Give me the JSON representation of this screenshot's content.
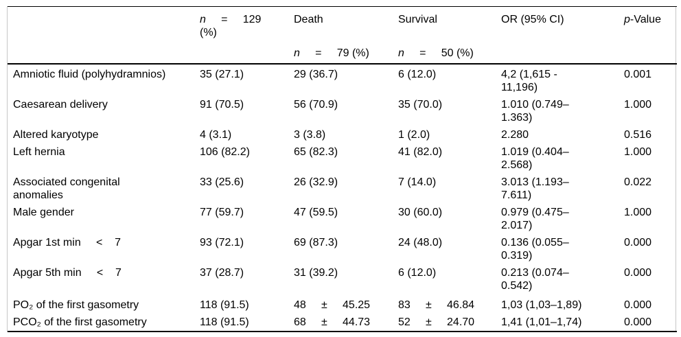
{
  "header": {
    "variable": "",
    "total": {
      "n": "n",
      "rest": "     =     129",
      "pct": "(%)"
    },
    "death": {
      "title": "Death",
      "n": "n",
      "rest": "     =     79 (%)"
    },
    "survival": {
      "title": "Survival",
      "n": "n",
      "rest": "     =     50 (%)"
    },
    "or": {
      "title": "OR (95% CI)"
    },
    "p": {
      "p": "p",
      "rest": "-Value"
    }
  },
  "rows": [
    {
      "label": "Amniotic fluid (polyhydramnios)",
      "total": "35 (27.1)",
      "death": "29 (36.7)",
      "survival": "6 (12.0)",
      "or": "4,2 (1,615 -\n11,196)",
      "p": "0.001"
    },
    {
      "label": "Caesarean delivery",
      "total": "91 (70.5)",
      "death": "56 (70.9)",
      "survival": "35 (70.0)",
      "or": "1.010 (0.749–\n1.363)",
      "p": "1.000"
    },
    {
      "label": "Altered karyotype",
      "total": "4 (3.1)",
      "death": "3 (3.8)",
      "survival": "1 (2.0)",
      "or": "2.280",
      "p": "0.516"
    },
    {
      "label": "Left hernia",
      "total": "106 (82.2)",
      "death": "65 (82.3)",
      "survival": "41 (82.0)",
      "or": "1.019 (0.404–\n2.568)",
      "p": "1.000"
    },
    {
      "label": "Associated congenital\nanomalies",
      "total": "33 (25.6)",
      "death": "26 (32.9)",
      "survival": "7 (14.0)",
      "or": "3.013 (1.193–\n7.611)",
      "p": "0.022"
    },
    {
      "label": "Male gender",
      "total": "77 (59.7)",
      "death": "47 (59.5)",
      "survival": "30 (60.0)",
      "or": "0.979 (0.475–\n2.017)",
      "p": "1.000"
    },
    {
      "label": "Apgar 1st min     <    7",
      "total": "93 (72.1)",
      "death": "69 (87.3)",
      "survival": "24 (48.0)",
      "or": "0.136 (0.055–\n0.319)",
      "p": "0.000"
    },
    {
      "label": "Apgar 5th min     <    7",
      "total": "37 (28.7)",
      "death": "31 (39.2)",
      "survival": "6 (12.0)",
      "or": "0.213 (0.074–\n0.542)",
      "p": "0.000"
    },
    {
      "label": "PO₂ of the first gasometry",
      "total": "118 (91.5)",
      "death": "48     ±     45.25",
      "survival": "83     ±     46.84",
      "or": "1,03 (1,03–1,89)",
      "p": "0.000"
    },
    {
      "label": "PCO₂ of the first gasometry",
      "total": "118 (91.5)",
      "death": "68     ±     44.73",
      "survival": "52     ±     24.70",
      "or": "1,41 (1,01–1,74)",
      "p": "0.000"
    }
  ]
}
